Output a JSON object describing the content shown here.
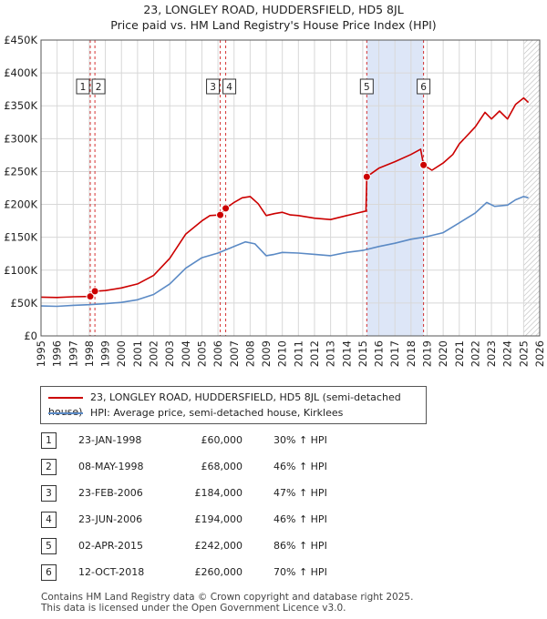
{
  "title": {
    "line1": "23, LONGLEY ROAD, HUDDERSFIELD, HD5 8JL",
    "line2": "Price paid vs. HM Land Registry's House Price Index (HPI)"
  },
  "chart_data": {
    "type": "line",
    "x_range": [
      1995,
      2026
    ],
    "y_range": [
      0,
      450000
    ],
    "x_ticks": [
      1995,
      1996,
      1997,
      1998,
      1999,
      2000,
      2001,
      2002,
      2003,
      2004,
      2005,
      2006,
      2007,
      2008,
      2009,
      2010,
      2011,
      2012,
      2013,
      2014,
      2015,
      2016,
      2017,
      2018,
      2019,
      2020,
      2021,
      2022,
      2023,
      2024,
      2025,
      2026
    ],
    "y_ticks": [
      {
        "value": 0,
        "label": "£0"
      },
      {
        "value": 50000,
        "label": "£50K"
      },
      {
        "value": 100000,
        "label": "£100K"
      },
      {
        "value": 150000,
        "label": "£150K"
      },
      {
        "value": 200000,
        "label": "£200K"
      },
      {
        "value": 250000,
        "label": "£250K"
      },
      {
        "value": 300000,
        "label": "£300K"
      },
      {
        "value": 350000,
        "label": "£350K"
      },
      {
        "value": 400000,
        "label": "£400K"
      },
      {
        "value": 450000,
        "label": "£450K"
      }
    ],
    "series": [
      {
        "name": "23, LONGLEY ROAD, HUDDERSFIELD, HD5 8JL (semi-detached house)",
        "color": "#cc0000",
        "points": [
          [
            1995.0,
            59000
          ],
          [
            1996.0,
            58500
          ],
          [
            1997.0,
            59500
          ],
          [
            1998.06,
            60000
          ],
          [
            1998.35,
            68000
          ],
          [
            1999.0,
            69000
          ],
          [
            2000.0,
            73000
          ],
          [
            2001.0,
            79000
          ],
          [
            2002.0,
            92000
          ],
          [
            2003.0,
            118000
          ],
          [
            2004.0,
            155000
          ],
          [
            2005.0,
            175000
          ],
          [
            2005.5,
            183000
          ],
          [
            2006.14,
            184000
          ],
          [
            2006.48,
            194000
          ],
          [
            2007.0,
            203000
          ],
          [
            2007.5,
            210000
          ],
          [
            2008.0,
            212000
          ],
          [
            2008.5,
            201000
          ],
          [
            2009.0,
            183000
          ],
          [
            2009.5,
            186000
          ],
          [
            2010.0,
            188000
          ],
          [
            2010.5,
            184000
          ],
          [
            2011.0,
            183000
          ],
          [
            2012.0,
            179000
          ],
          [
            2013.0,
            177000
          ],
          [
            2014.0,
            183000
          ],
          [
            2014.7,
            187000
          ],
          [
            2015.2,
            190000
          ],
          [
            2015.25,
            242000
          ],
          [
            2016.0,
            255000
          ],
          [
            2017.0,
            265000
          ],
          [
            2018.0,
            276000
          ],
          [
            2018.6,
            284000
          ],
          [
            2018.78,
            260000
          ],
          [
            2019.3,
            252000
          ],
          [
            2020.0,
            263000
          ],
          [
            2020.6,
            276000
          ],
          [
            2021.0,
            292000
          ],
          [
            2022.0,
            318000
          ],
          [
            2022.6,
            340000
          ],
          [
            2023.0,
            330000
          ],
          [
            2023.5,
            342000
          ],
          [
            2024.0,
            330000
          ],
          [
            2024.5,
            352000
          ],
          [
            2025.0,
            362000
          ],
          [
            2025.3,
            355000
          ]
        ]
      },
      {
        "name": "HPI: Average price, semi-detached house, Kirklees",
        "color": "#5b8ac5",
        "points": [
          [
            1995.0,
            45500
          ],
          [
            1996.0,
            45000
          ],
          [
            1997.0,
            46500
          ],
          [
            1998.0,
            47500
          ],
          [
            1999.0,
            49000
          ],
          [
            2000.0,
            51000
          ],
          [
            2001.0,
            55000
          ],
          [
            2002.0,
            63000
          ],
          [
            2003.0,
            79000
          ],
          [
            2004.0,
            103000
          ],
          [
            2005.0,
            119000
          ],
          [
            2006.0,
            126000
          ],
          [
            2007.0,
            136000
          ],
          [
            2007.7,
            143000
          ],
          [
            2008.3,
            140000
          ],
          [
            2009.0,
            122000
          ],
          [
            2009.5,
            124000
          ],
          [
            2010.0,
            127000
          ],
          [
            2011.0,
            126000
          ],
          [
            2012.0,
            124000
          ],
          [
            2013.0,
            122000
          ],
          [
            2014.0,
            127000
          ],
          [
            2015.0,
            130000
          ],
          [
            2016.0,
            136000
          ],
          [
            2017.0,
            141000
          ],
          [
            2018.0,
            147000
          ],
          [
            2019.0,
            151000
          ],
          [
            2020.0,
            157000
          ],
          [
            2021.0,
            172000
          ],
          [
            2022.0,
            187000
          ],
          [
            2022.7,
            203000
          ],
          [
            2023.2,
            197000
          ],
          [
            2024.0,
            199000
          ],
          [
            2024.5,
            207000
          ],
          [
            2025.0,
            212000
          ],
          [
            2025.3,
            210000
          ]
        ]
      }
    ],
    "transactions": [
      {
        "id": "1",
        "x": 1998.06,
        "price": 60000,
        "date": "23-JAN-1998",
        "price_label": "£60,000",
        "hpi": "30% ↑ HPI"
      },
      {
        "id": "2",
        "x": 1998.35,
        "price": 68000,
        "date": "08-MAY-1998",
        "price_label": "£68,000",
        "hpi": "46% ↑ HPI"
      },
      {
        "id": "3",
        "x": 2006.14,
        "price": 184000,
        "date": "23-FEB-2006",
        "price_label": "£184,000",
        "hpi": "47% ↑ HPI"
      },
      {
        "id": "4",
        "x": 2006.48,
        "price": 194000,
        "date": "23-JUN-2006",
        "price_label": "£194,000",
        "hpi": "46% ↑ HPI"
      },
      {
        "id": "5",
        "x": 2015.25,
        "price": 242000,
        "date": "02-APR-2015",
        "price_label": "£242,000",
        "hpi": "86% ↑ HPI"
      },
      {
        "id": "6",
        "x": 2018.78,
        "price": 260000,
        "date": "12-OCT-2018",
        "price_label": "£260,000",
        "hpi": "70% ↑ HPI"
      }
    ],
    "shaded_span": [
      2015.25,
      2018.78
    ],
    "forecast_start": 2025.0,
    "colors": {
      "shade": "#dde6f7",
      "grid": "#d8d8d8",
      "marker_line": "#cc0000"
    }
  },
  "legend": {
    "property_label": "23, LONGLEY ROAD, HUDDERSFIELD, HD5 8JL (semi-detached house)",
    "hpi_label": "HPI: Average price, semi-detached house, Kirklees"
  },
  "footer": {
    "line1": "Contains HM Land Registry data © Crown copyright and database right 2025.",
    "line2": "This data is licensed under the Open Government Licence v3.0."
  }
}
